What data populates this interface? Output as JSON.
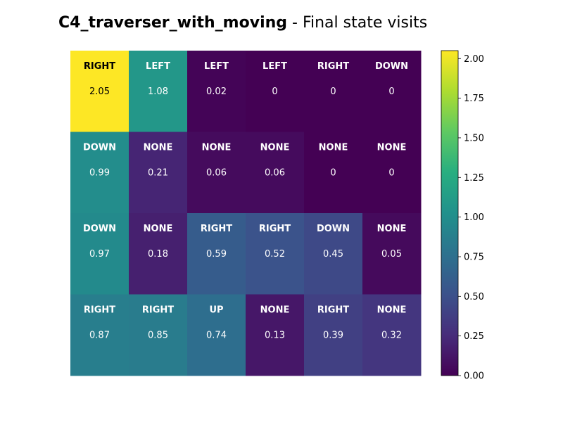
{
  "chart_data": {
    "type": "heatmap",
    "title_bold": "C4_traverser_with_moving",
    "title_rest": " - Final state visits",
    "rows": 4,
    "cols": 6,
    "values": [
      [
        2.05,
        1.08,
        0.02,
        0,
        0,
        0
      ],
      [
        0.99,
        0.21,
        0.06,
        0.06,
        0,
        0
      ],
      [
        0.97,
        0.18,
        0.59,
        0.52,
        0.45,
        0.05
      ],
      [
        0.87,
        0.85,
        0.74,
        0.13,
        0.39,
        0.32
      ]
    ],
    "actions": [
      [
        "RIGHT",
        "LEFT",
        "LEFT",
        "LEFT",
        "RIGHT",
        "DOWN"
      ],
      [
        "DOWN",
        "NONE",
        "NONE",
        "NONE",
        "NONE",
        "NONE"
      ],
      [
        "DOWN",
        "NONE",
        "RIGHT",
        "RIGHT",
        "DOWN",
        "NONE"
      ],
      [
        "RIGHT",
        "RIGHT",
        "UP",
        "NONE",
        "RIGHT",
        "NONE"
      ]
    ],
    "colorscale": "viridis",
    "vmin": 0,
    "vmax": 2.05,
    "colorbar_ticks": [
      "0.00",
      "0.25",
      "0.50",
      "0.75",
      "1.00",
      "1.25",
      "1.50",
      "1.75",
      "2.00"
    ],
    "grid": false,
    "axes_visible": false
  }
}
